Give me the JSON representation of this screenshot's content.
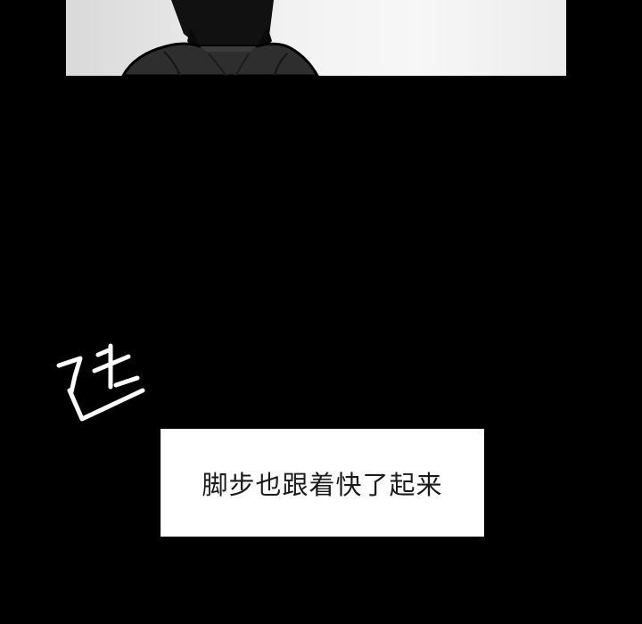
{
  "panel_top": {
    "figure": "character-shoulders-silhouette"
  },
  "sfx": {
    "icon": "speed-sound-effect-icon",
    "color": "#ffffff",
    "outline": "#000000"
  },
  "caption": {
    "text": "脚步也跟着快了起来"
  }
}
